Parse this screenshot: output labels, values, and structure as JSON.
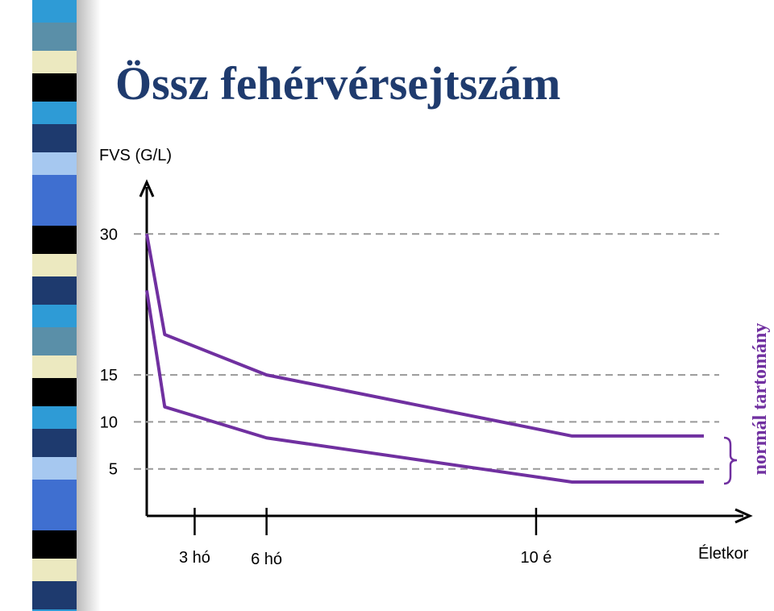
{
  "chart_data": {
    "type": "line",
    "title": "Össz fehérvérsejtszám",
    "y_label": "FVS (G/L)",
    "x_label": "Életkor",
    "annotation": "normál tartomány",
    "x": [
      0,
      3,
      20,
      71,
      93
    ],
    "series": [
      {
        "color": "#7030a0",
        "values": [
          30,
          19.3,
          15,
          8.5,
          8.5
        ]
      },
      {
        "color": "#7030a0",
        "values": [
          24,
          11.6,
          8.3,
          3.6,
          3.6
        ]
      }
    ],
    "xlim": [
      0,
      100
    ],
    "xticks": [
      {
        "value": 8,
        "label": "3 hó"
      },
      {
        "value": 20,
        "label": "6 hó"
      },
      {
        "value": 65,
        "label": "10 é"
      }
    ],
    "ylim": [
      0,
      35
    ],
    "yticks": [
      5,
      10,
      15,
      30
    ],
    "grid": true
  }
}
